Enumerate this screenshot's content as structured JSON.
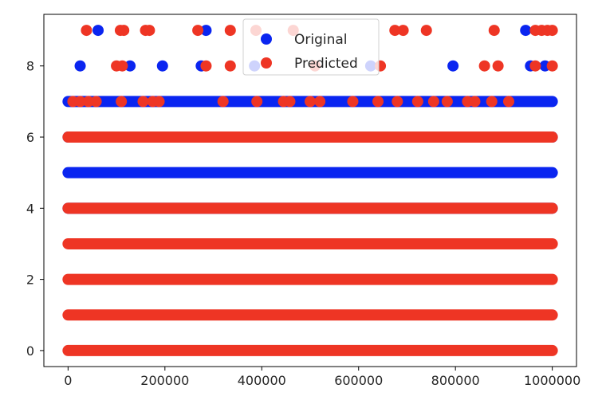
{
  "chart_data": {
    "type": "scatter",
    "title": "",
    "xlabel": "",
    "ylabel": "",
    "xlim": [
      -50000,
      1050000
    ],
    "ylim": [
      -0.45,
      9.45
    ],
    "x_ticks": [
      0,
      200000,
      400000,
      600000,
      800000,
      1000000
    ],
    "x_tick_labels": [
      "0",
      "200000",
      "400000",
      "600000",
      "800000",
      "1000000"
    ],
    "y_ticks": [
      0,
      2,
      4,
      6,
      8
    ],
    "y_tick_labels": [
      "0",
      "2",
      "4",
      "6",
      "8"
    ],
    "grid": false,
    "legend": {
      "position": "top-center",
      "entries": [
        "Original",
        "Predicted"
      ]
    },
    "series": [
      {
        "name": "Original",
        "color": "#0a25f0",
        "bands": [
          {
            "y": 5,
            "x_start": 0,
            "x_end": 1000000
          },
          {
            "y": 7,
            "x_start": 0,
            "x_end": 1000000
          },
          {
            "y": 6,
            "x_start": 0,
            "x_end": 1000000
          },
          {
            "y": 4,
            "x_start": 0,
            "x_end": 1000000
          }
        ],
        "points": [
          {
            "x": 25000,
            "y": 8
          },
          {
            "x": 128000,
            "y": 8
          },
          {
            "x": 195000,
            "y": 8
          },
          {
            "x": 275000,
            "y": 8
          },
          {
            "x": 385000,
            "y": 8
          },
          {
            "x": 625000,
            "y": 8
          },
          {
            "x": 795000,
            "y": 8
          },
          {
            "x": 955000,
            "y": 8
          },
          {
            "x": 985000,
            "y": 8
          },
          {
            "x": 62000,
            "y": 9
          },
          {
            "x": 285000,
            "y": 9
          },
          {
            "x": 945000,
            "y": 9
          }
        ]
      },
      {
        "name": "Predicted",
        "color": "#ee3524",
        "bands": [
          {
            "y": 0,
            "x_start": 0,
            "x_end": 1000000
          },
          {
            "y": 1,
            "x_start": 0,
            "x_end": 1000000
          },
          {
            "y": 2,
            "x_start": 0,
            "x_end": 1000000
          },
          {
            "y": 3,
            "x_start": 0,
            "x_end": 1000000
          },
          {
            "y": 4,
            "x_start": 0,
            "x_end": 1000000
          },
          {
            "y": 6,
            "x_start": 0,
            "x_end": 1000000
          }
        ],
        "points": [
          {
            "x": 10000,
            "y": 7
          },
          {
            "x": 25000,
            "y": 7
          },
          {
            "x": 42000,
            "y": 7
          },
          {
            "x": 58000,
            "y": 7
          },
          {
            "x": 110000,
            "y": 7
          },
          {
            "x": 155000,
            "y": 7
          },
          {
            "x": 175000,
            "y": 7
          },
          {
            "x": 188000,
            "y": 7
          },
          {
            "x": 320000,
            "y": 7
          },
          {
            "x": 390000,
            "y": 7
          },
          {
            "x": 445000,
            "y": 7
          },
          {
            "x": 458000,
            "y": 7
          },
          {
            "x": 500000,
            "y": 7
          },
          {
            "x": 520000,
            "y": 7
          },
          {
            "x": 588000,
            "y": 7
          },
          {
            "x": 640000,
            "y": 7
          },
          {
            "x": 680000,
            "y": 7
          },
          {
            "x": 722000,
            "y": 7
          },
          {
            "x": 755000,
            "y": 7
          },
          {
            "x": 783000,
            "y": 7
          },
          {
            "x": 825000,
            "y": 7
          },
          {
            "x": 840000,
            "y": 7
          },
          {
            "x": 875000,
            "y": 7
          },
          {
            "x": 910000,
            "y": 7
          },
          {
            "x": 100000,
            "y": 8
          },
          {
            "x": 112000,
            "y": 8
          },
          {
            "x": 285000,
            "y": 8
          },
          {
            "x": 335000,
            "y": 8
          },
          {
            "x": 510000,
            "y": 8
          },
          {
            "x": 645000,
            "y": 8
          },
          {
            "x": 860000,
            "y": 8
          },
          {
            "x": 888000,
            "y": 8
          },
          {
            "x": 965000,
            "y": 8
          },
          {
            "x": 1000000,
            "y": 8
          },
          {
            "x": 38000,
            "y": 9
          },
          {
            "x": 108000,
            "y": 9
          },
          {
            "x": 115000,
            "y": 9
          },
          {
            "x": 160000,
            "y": 9
          },
          {
            "x": 168000,
            "y": 9
          },
          {
            "x": 268000,
            "y": 9
          },
          {
            "x": 335000,
            "y": 9
          },
          {
            "x": 388000,
            "y": 9
          },
          {
            "x": 465000,
            "y": 9
          },
          {
            "x": 675000,
            "y": 9
          },
          {
            "x": 692000,
            "y": 9
          },
          {
            "x": 740000,
            "y": 9
          },
          {
            "x": 880000,
            "y": 9
          },
          {
            "x": 965000,
            "y": 9
          },
          {
            "x": 978000,
            "y": 9
          },
          {
            "x": 990000,
            "y": 9
          },
          {
            "x": 1000000,
            "y": 9
          }
        ]
      }
    ]
  }
}
